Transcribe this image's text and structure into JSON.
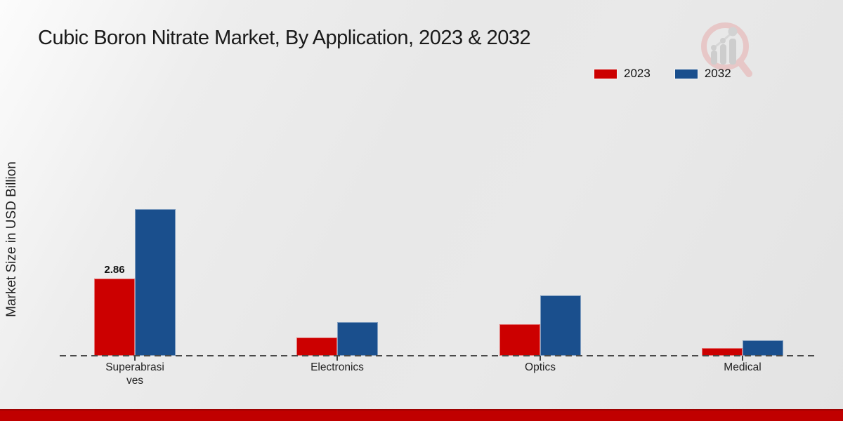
{
  "title": "Cubic Boron Nitrate Market, By Application, 2023 & 2032",
  "y_axis_label": "Market Size in USD Billion",
  "legend": {
    "items": [
      {
        "label": "2023",
        "color": "#cc0000"
      },
      {
        "label": "2032",
        "color": "#1a4f8d"
      }
    ]
  },
  "branding": {
    "footer_bar_color": "#c00000",
    "watermark": "magnifier-bar-chart-logo"
  },
  "chart_data": {
    "type": "bar",
    "title": "Cubic Boron Nitrate Market, By Application, 2023 & 2032",
    "xlabel": "",
    "ylabel": "Market Size in USD Billion",
    "categories": [
      "Superabrasives",
      "Electronics",
      "Optics",
      "Medical"
    ],
    "display_categories": [
      [
        "Superabrasi",
        "ves"
      ],
      [
        "Electronics"
      ],
      [
        "Optics"
      ],
      [
        "Medical"
      ]
    ],
    "series": [
      {
        "name": "2023",
        "color": "#cc0000",
        "values": [
          2.86,
          0.68,
          1.17,
          0.29
        ]
      },
      {
        "name": "2032",
        "color": "#1a4f8d",
        "values": [
          5.43,
          1.25,
          2.24,
          0.57
        ]
      }
    ],
    "shown_value_labels": [
      {
        "series_index": 0,
        "category_index": 0,
        "text": "2.86"
      }
    ],
    "ylim": [
      0,
      5.5
    ],
    "grid": false,
    "legend_position": "top-right",
    "baseline_style": "dashed"
  }
}
